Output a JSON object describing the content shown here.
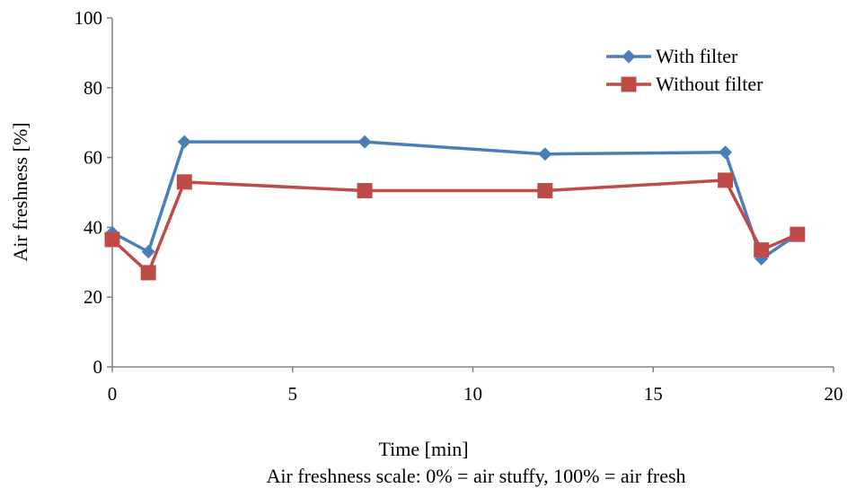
{
  "chart_data": {
    "type": "line",
    "xlabel": "Time [min]",
    "ylabel": "Air freshness [%]",
    "caption": "Air freshness scale: 0% = air stuffy, 100% = air fresh",
    "xlim": [
      0,
      20
    ],
    "ylim": [
      0,
      100
    ],
    "xticks": [
      0,
      5,
      10,
      15,
      20
    ],
    "yticks": [
      0,
      20,
      40,
      60,
      80,
      100
    ],
    "grid": false,
    "legend_position": "top-right",
    "series": [
      {
        "name": "With filter",
        "color": "#4A7EBB",
        "marker": "diamond",
        "x": [
          0,
          1,
          2,
          7,
          12,
          17,
          18,
          19
        ],
        "y": [
          38.5,
          33,
          64.5,
          64.5,
          61,
          61.5,
          31,
          38
        ]
      },
      {
        "name": "Without filter",
        "color": "#BE4B48",
        "marker": "square",
        "x": [
          0,
          1,
          2,
          7,
          12,
          17,
          18,
          19
        ],
        "y": [
          36.5,
          27,
          53,
          50.5,
          50.5,
          53.5,
          33.5,
          38
        ]
      }
    ]
  }
}
